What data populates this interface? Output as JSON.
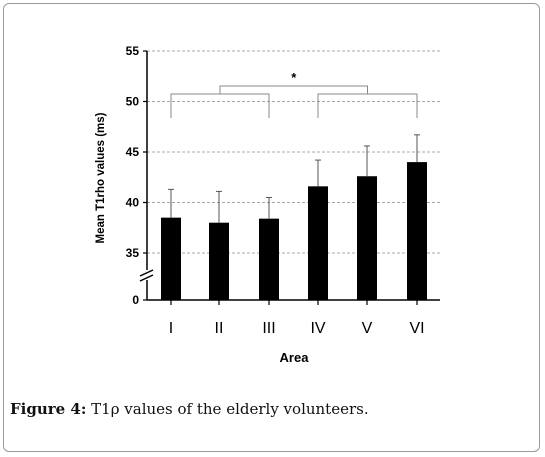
{
  "caption": {
    "label": "Figure 4:",
    "text": " T1ρ values of the elderly volunteers."
  },
  "chart_data": {
    "type": "bar",
    "categories": [
      "I",
      "II",
      "III",
      "IV",
      "V",
      "VI"
    ],
    "values": [
      38.5,
      38.0,
      38.4,
      41.6,
      42.6,
      44.0
    ],
    "error_upper": [
      41.3,
      41.1,
      40.5,
      44.2,
      45.6,
      46.7
    ],
    "xlabel": "Area",
    "ylabel": "Mean T1rho values  (ms)",
    "yticks": [
      0,
      35,
      40,
      45,
      50,
      55
    ],
    "ylim": [
      33,
      55
    ],
    "axis_break": true,
    "grid": true,
    "significance": {
      "marker": "*",
      "left_group": [
        "I",
        "III"
      ],
      "right_group": [
        "IV",
        "VI"
      ]
    },
    "bar_color": "#000000",
    "grid_color": "#a8a8a8"
  }
}
